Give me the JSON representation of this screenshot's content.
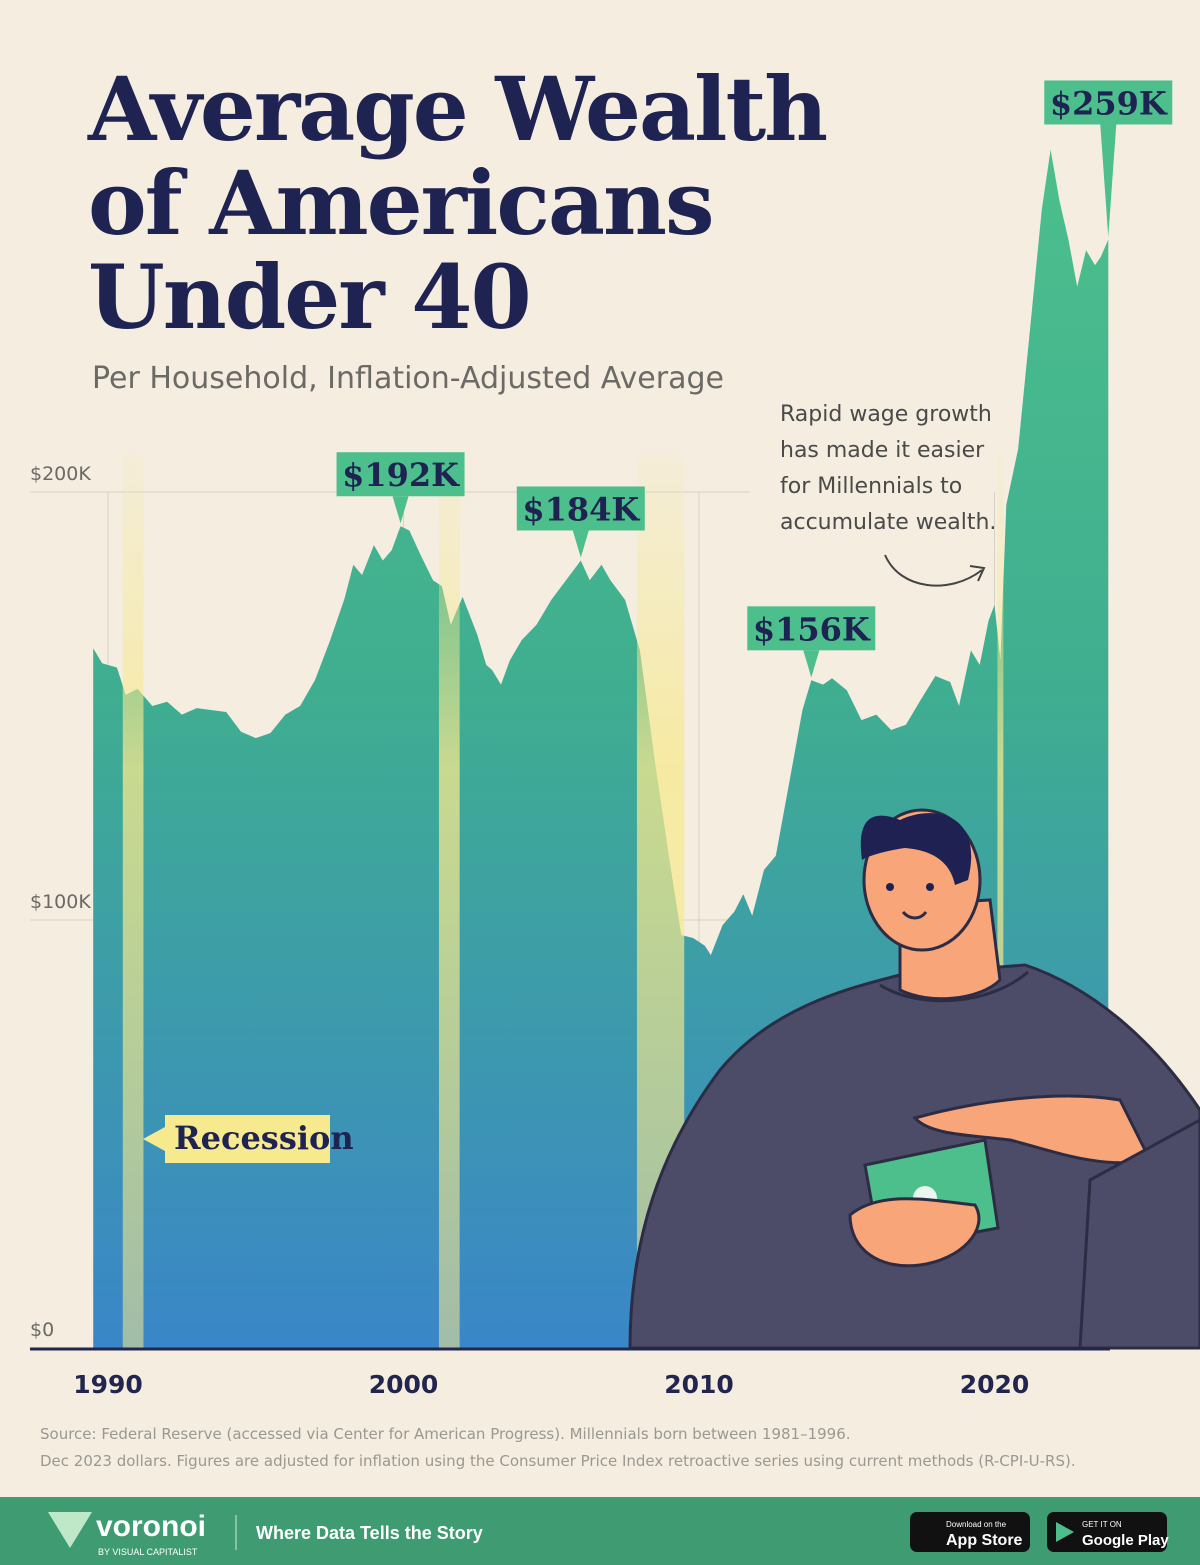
{
  "chart_data": {
    "type": "area",
    "title": [
      "Average Wealth",
      "of Americans",
      "Under 40"
    ],
    "subtitle": "Per Household, Inflation-Adjusted Average",
    "x": [
      1989.5,
      1989.8,
      1990.3,
      1990.6,
      1991.0,
      1991.5,
      1992.0,
      1992.5,
      1993.0,
      1994.0,
      1994.5,
      1995.0,
      1995.5,
      1996.0,
      1996.5,
      1997.0,
      1997.5,
      1998.0,
      1998.3,
      1998.6,
      1999.0,
      1999.3,
      1999.6,
      1999.9,
      2000.2,
      2000.6,
      2001.0,
      2001.3,
      2001.6,
      2002.0,
      2002.5,
      2002.8,
      2003.0,
      2003.3,
      2003.6,
      2004.0,
      2004.5,
      2005.0,
      2005.5,
      2006.0,
      2006.3,
      2006.7,
      2007.0,
      2007.5,
      2008.0,
      2008.5,
      2009.0,
      2009.4,
      2009.8,
      2010.2,
      2010.4,
      2010.8,
      2011.2,
      2011.5,
      2011.8,
      2012.2,
      2012.6,
      2013.0,
      2013.5,
      2013.8,
      2014.2,
      2014.5,
      2015.0,
      2015.5,
      2016.0,
      2016.5,
      2017.0,
      2017.5,
      2018.0,
      2018.5,
      2018.8,
      2019.2,
      2019.5,
      2019.8,
      2020.0,
      2020.2,
      2020.4,
      2020.8,
      2021.2,
      2021.6,
      2021.9,
      2022.2,
      2022.5,
      2022.8,
      2023.1,
      2023.4,
      2023.6,
      2023.85
    ],
    "series": [
      {
        "name": "Average wealth",
        "color": "#4cbf8c",
        "values": [
          163500,
          160000,
          159000,
          152600,
          154000,
          150000,
          151000,
          148000,
          149500,
          148600,
          144000,
          142500,
          143700,
          148000,
          150000,
          156000,
          165000,
          175000,
          183000,
          180600,
          187600,
          184000,
          186400,
          192000,
          191000,
          185000,
          179400,
          178000,
          169000,
          175500,
          166600,
          159600,
          158400,
          155000,
          160700,
          165400,
          169000,
          174800,
          179400,
          184000,
          179400,
          183000,
          179400,
          174800,
          163000,
          137400,
          114000,
          96500,
          95800,
          94000,
          91800,
          98800,
          102000,
          106000,
          101000,
          111700,
          115000,
          130000,
          149000,
          156000,
          155000,
          156500,
          153700,
          146700,
          148000,
          144400,
          145600,
          151400,
          157000,
          155600,
          150000,
          163000,
          159600,
          170000,
          173600,
          160700,
          197000,
          210000,
          238000,
          266000,
          280000,
          268000,
          259000,
          248000,
          256500,
          253000,
          255000,
          259000
        ]
      }
    ],
    "xlim": [
      1989,
      2026
    ],
    "ylim": [
      0,
      300000
    ],
    "xticks": [
      1990,
      2000,
      2010,
      2020
    ],
    "yticks": [
      {
        "value": 0,
        "label": "$0"
      },
      {
        "value": 100000,
        "label": "$100K"
      },
      {
        "value": 200000,
        "label": "$200K"
      }
    ],
    "grid": true,
    "recessions": {
      "name": "Recession",
      "color": "#f7e98e",
      "ranges": [
        [
          1990.5,
          1991.2
        ],
        [
          2001.2,
          2001.9
        ],
        [
          2007.9,
          2009.5
        ],
        [
          2020.1,
          2020.3
        ]
      ]
    },
    "annotations": [
      {
        "x": 1999.9,
        "value": 192000,
        "label": "$192K"
      },
      {
        "x": 2006.0,
        "value": 184000,
        "label": "$184K"
      },
      {
        "x": 2013.8,
        "value": 156000,
        "label": "$156K"
      },
      {
        "x": 2023.85,
        "value": 259000,
        "label": "$259K"
      }
    ],
    "note": [
      "Rapid wage growth",
      "has made it easier",
      "for Millennials to",
      "accumulate wealth."
    ],
    "source": [
      "Source: Federal Reserve (accessed via Center for American Progress). Millennials born between 1981–1996.",
      "Dec 2023 dollars. Figures are adjusted for inflation using the Consumer Price Index retroactive series using current methods (R-CPI-U-RS)."
    ]
  },
  "footer": {
    "brand": "voronoi",
    "byline": "BY VISUAL CAPITALIST",
    "tagline": "Where Data Tells the Story",
    "app_store": [
      "Download on the",
      "App Store"
    ],
    "google_play": [
      "GET IT ON",
      "Google Play"
    ]
  }
}
